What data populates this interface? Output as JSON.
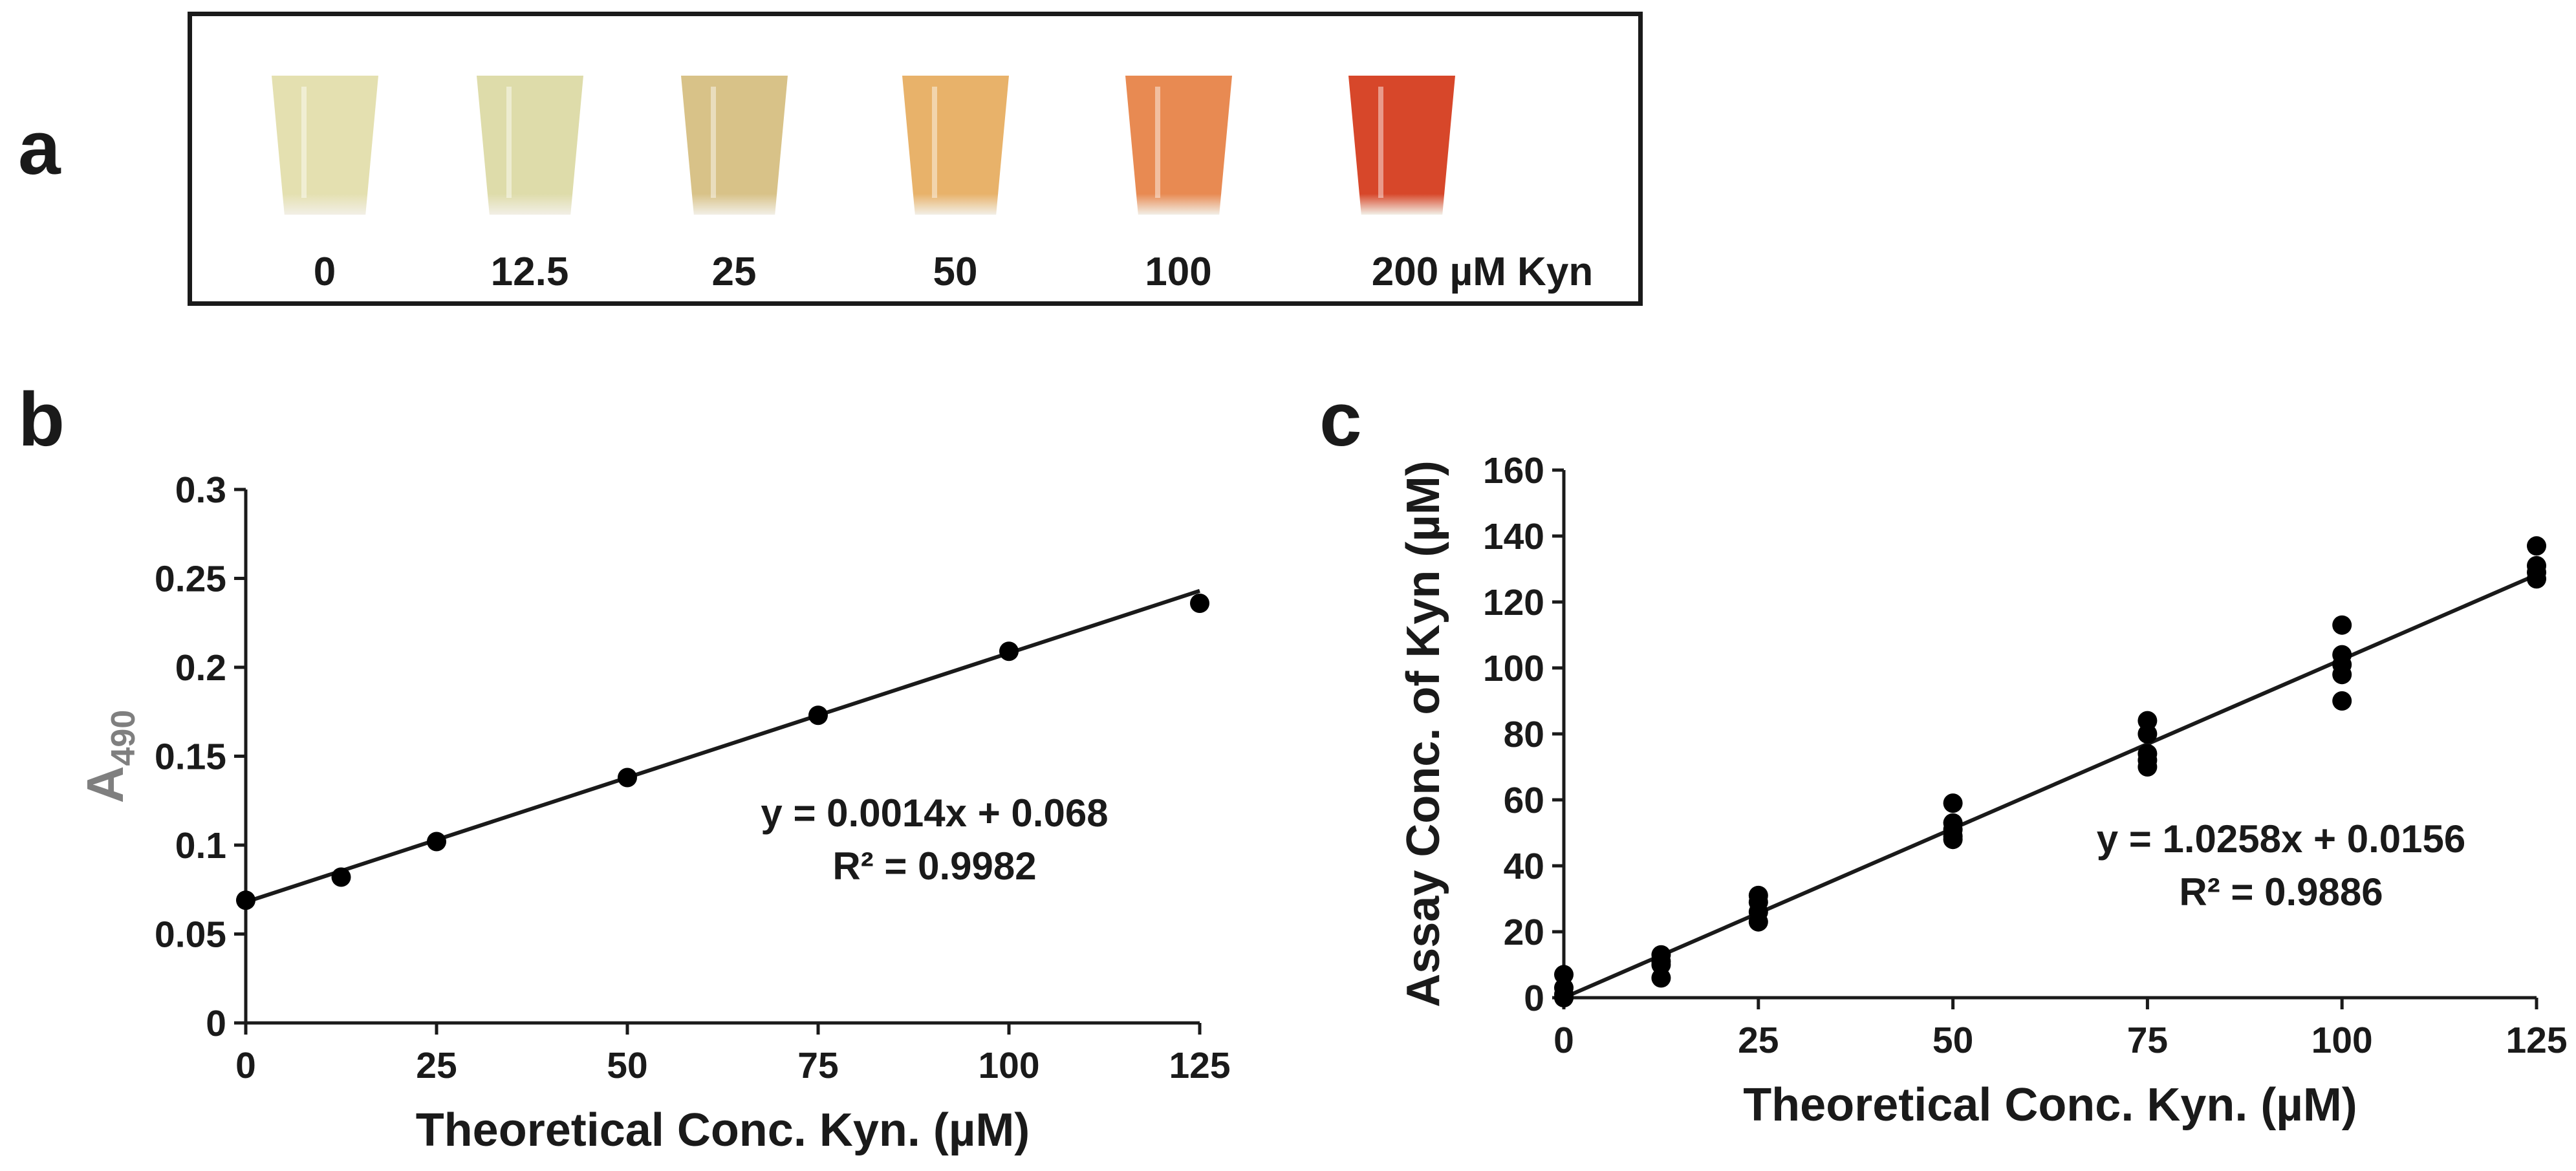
{
  "panel_labels": {
    "a": "a",
    "b": "b",
    "c": "c"
  },
  "tubes": [
    {
      "label": "0",
      "color": "#e4e0b0"
    },
    {
      "label": "12.5",
      "color": "#dedcaa"
    },
    {
      "label": "25",
      "color": "#d8c288"
    },
    {
      "label": "50",
      "color": "#e8b26a"
    },
    {
      "label": "100",
      "color": "#e88a52"
    },
    {
      "label": "200 µM Kyn",
      "color": "#d7472a"
    }
  ],
  "chart_data": [
    {
      "type": "scatter",
      "title": "",
      "xlabel": "Theoretical Conc. Kyn. (µM)",
      "ylabel": "A",
      "ylabel_sub": "490",
      "xlim": [
        0,
        125
      ],
      "ylim": [
        0,
        0.3
      ],
      "xticks": [
        0,
        25,
        50,
        75,
        100,
        125
      ],
      "yticks": [
        0,
        0.05,
        0.1,
        0.15,
        0.2,
        0.25,
        0.3
      ],
      "ytick_labels": [
        "0",
        "0.05",
        "0.1",
        "0.15",
        "0.2",
        "0.25",
        "0.3"
      ],
      "grid": false,
      "series": [
        {
          "x": [
            0,
            12.5,
            25,
            50,
            75,
            100,
            125
          ],
          "y": [
            0.069,
            0.082,
            0.102,
            0.138,
            0.173,
            0.209,
            0.236
          ]
        }
      ],
      "fit": {
        "slope": 0.0014,
        "intercept": 0.068
      },
      "annotation": [
        "y = 0.0014x + 0.068",
        "R² = 0.9982"
      ]
    },
    {
      "type": "scatter",
      "title": "",
      "xlabel": "Theoretical Conc. Kyn. (µM)",
      "ylabel": "Assay Conc. of Kyn (µM)",
      "xlim": [
        0,
        125
      ],
      "ylim": [
        0,
        160
      ],
      "xticks": [
        0,
        25,
        50,
        75,
        100,
        125
      ],
      "yticks": [
        0,
        20,
        40,
        60,
        80,
        100,
        120,
        140,
        160
      ],
      "ytick_labels": [
        "0",
        "20",
        "40",
        "60",
        "80",
        "100",
        "120",
        "140",
        "160"
      ],
      "grid": false,
      "series": [
        {
          "x": [
            0,
            0,
            0,
            0,
            12.5,
            12.5,
            12.5,
            12.5,
            25,
            25,
            25,
            25,
            50,
            50,
            50,
            50,
            50,
            75,
            75,
            75,
            75,
            75,
            100,
            100,
            100,
            100,
            100,
            125,
            125,
            125,
            125
          ],
          "y": [
            7,
            3,
            1,
            0,
            13,
            11,
            10,
            6,
            31,
            29,
            26,
            23,
            59,
            53,
            51,
            49,
            48,
            84,
            80,
            74,
            72,
            70,
            113,
            104,
            101,
            98,
            90,
            137,
            131,
            129,
            127
          ]
        }
      ],
      "fit": {
        "slope": 1.0258,
        "intercept": 0.0156
      },
      "annotation": [
        "y = 1.0258x + 0.0156",
        "R² = 0.9886"
      ]
    }
  ]
}
